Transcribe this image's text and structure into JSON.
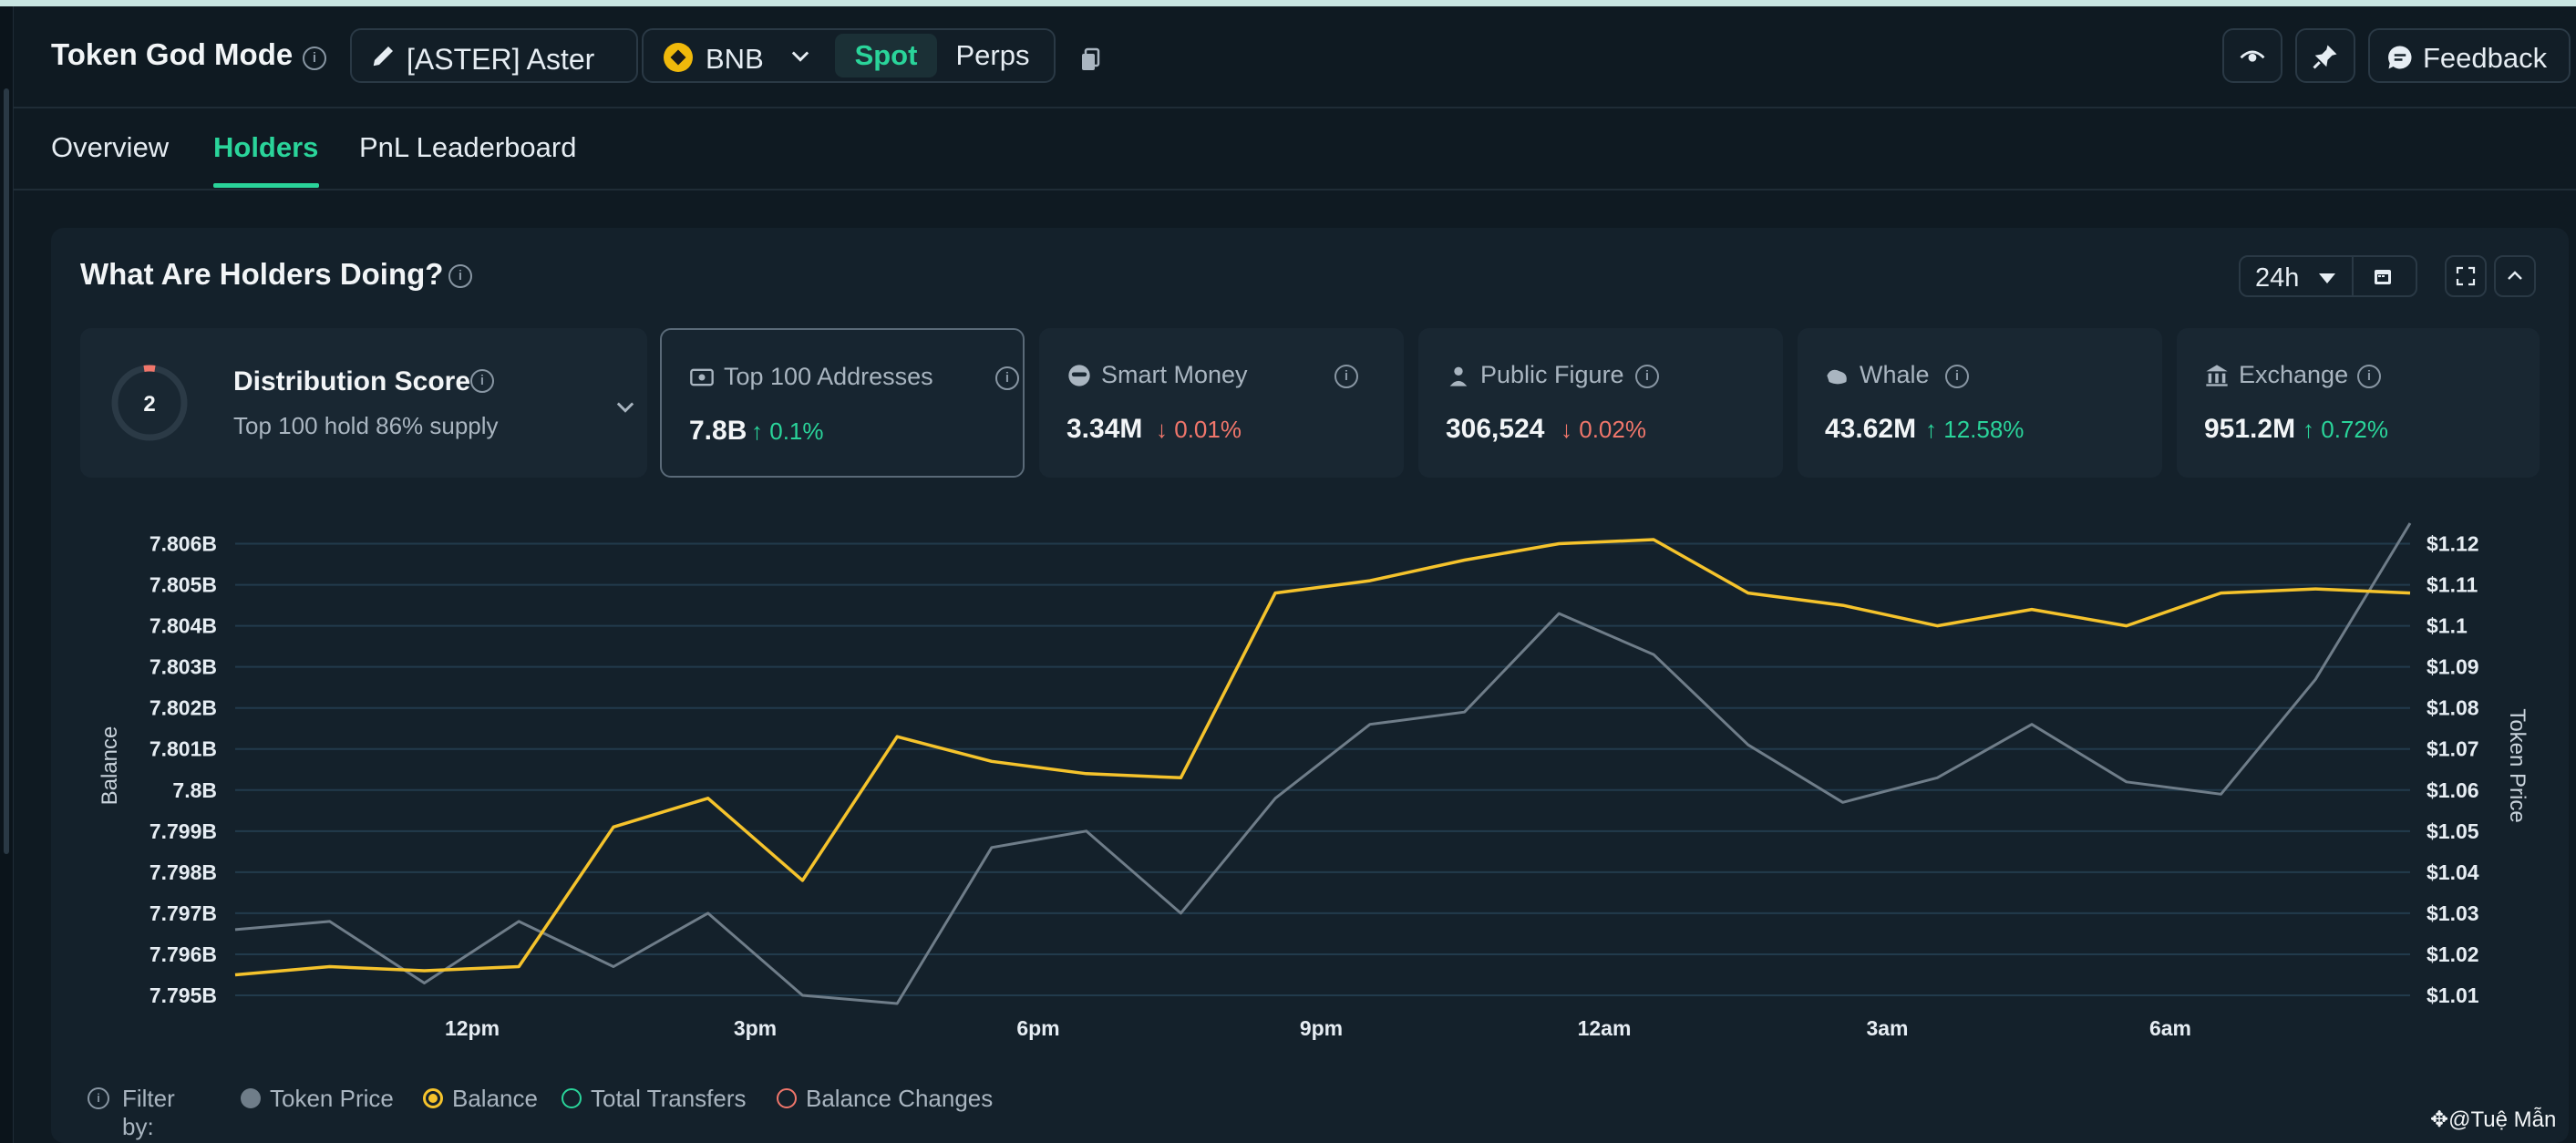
{
  "header": {
    "title": "Token God Mode",
    "token_label": "[ASTER] Aster",
    "chain_label": "BNB",
    "seg_spot": "Spot",
    "seg_perps": "Perps",
    "feedback_label": "Feedback"
  },
  "tabs": [
    {
      "label": "Overview",
      "active": false
    },
    {
      "label": "Holders",
      "active": true
    },
    {
      "label": "PnL Leaderboard",
      "active": false
    }
  ],
  "panel": {
    "title": "What Are Holders Doing?",
    "time_range": "24h"
  },
  "distribution": {
    "score": "2",
    "title": "Distribution Score",
    "subtitle": "Top 100 hold 86% supply"
  },
  "cards": [
    {
      "label": "Top 100 Addresses",
      "value": "7.8B",
      "change": "0.1%",
      "direction": "up",
      "icon": "wallet-icon",
      "selected": true
    },
    {
      "label": "Smart Money",
      "value": "3.34M",
      "change": "0.01%",
      "direction": "down",
      "icon": "smart-money-icon",
      "selected": false
    },
    {
      "label": "Public Figure",
      "value": "306,524",
      "change": "0.02%",
      "direction": "down",
      "icon": "public-figure-icon",
      "selected": false
    },
    {
      "label": "Whale",
      "value": "43.62M",
      "change": "12.58%",
      "direction": "up",
      "icon": "whale-icon",
      "selected": false
    },
    {
      "label": "Exchange",
      "value": "951.2M",
      "change": "0.72%",
      "direction": "up",
      "icon": "exchange-icon",
      "selected": false
    }
  ],
  "chart_data": {
    "type": "line",
    "ylabel": "Balance",
    "y2label": "Token Price",
    "x_ticks": [
      "12pm",
      "3pm",
      "6pm",
      "9pm",
      "12am",
      "3am",
      "6am"
    ],
    "y_ticks": [
      "7.795B",
      "7.796B",
      "7.797B",
      "7.798B",
      "7.799B",
      "7.8B",
      "7.801B",
      "7.802B",
      "7.803B",
      "7.804B",
      "7.805B",
      "7.806B"
    ],
    "y2_ticks": [
      "$1.01",
      "$1.02",
      "$1.03",
      "$1.04",
      "$1.05",
      "$1.06",
      "$1.07",
      "$1.08",
      "$1.09",
      "$1.1",
      "$1.11",
      "$1.12"
    ],
    "ylim": [
      7.795,
      7.8065
    ],
    "y2lim": [
      1.01,
      1.125
    ],
    "series": [
      {
        "name": "Balance",
        "color": "#f5c32c",
        "axis": "left",
        "values": [
          7.7955,
          7.7957,
          7.7956,
          7.7957,
          7.7991,
          7.7998,
          7.7978,
          7.8013,
          7.8007,
          7.8004,
          7.8003,
          7.8048,
          7.8051,
          7.8056,
          7.806,
          7.8061,
          7.8048,
          7.8045,
          7.804,
          7.8044,
          7.804,
          7.8048,
          7.8049,
          7.8048
        ]
      },
      {
        "name": "Token Price",
        "color": "#6f7d89",
        "axis": "right",
        "values": [
          1.026,
          1.028,
          1.013,
          1.028,
          1.017,
          1.03,
          1.01,
          1.008,
          1.046,
          1.05,
          1.03,
          1.058,
          1.076,
          1.079,
          1.103,
          1.093,
          1.071,
          1.057,
          1.063,
          1.076,
          1.062,
          1.059,
          1.087,
          1.125
        ]
      }
    ]
  },
  "legend": {
    "prefix": "Filter by:",
    "items": [
      {
        "label": "Token Price",
        "color": "#6f7d89",
        "style": "filled"
      },
      {
        "label": "Balance",
        "color": "#f5c32c",
        "style": "selected"
      },
      {
        "label": "Total Transfers",
        "color": "#2ad49a",
        "style": "outline"
      },
      {
        "label": "Balance Changes",
        "color": "#f0766b",
        "style": "outline"
      }
    ]
  },
  "watermark": "@Tuệ Mẫn"
}
